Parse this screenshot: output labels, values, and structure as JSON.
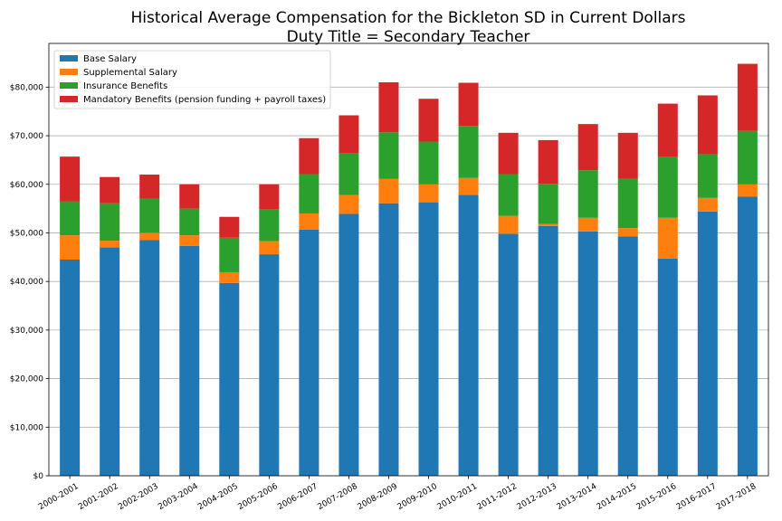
{
  "chart_data": {
    "type": "bar",
    "stacked": true,
    "title": "Historical Average Compensation for the Bickleton SD in Current Dollars",
    "subtitle": "Duty Title = Secondary Teacher",
    "xlabel": "",
    "ylabel": "",
    "ylim": [
      0,
      89000
    ],
    "yticks": [
      0,
      10000,
      20000,
      30000,
      40000,
      50000,
      60000,
      70000,
      80000
    ],
    "ytick_labels": [
      "$0",
      "$10,000",
      "$20,000",
      "$30,000",
      "$40,000",
      "$50,000",
      "$60,000",
      "$70,000",
      "$80,000"
    ],
    "grid": "horizontal",
    "legend_position": "top-left",
    "categories": [
      "2000-2001",
      "2001-2002",
      "2002-2003",
      "2003-2004",
      "2004-2005",
      "2005-2006",
      "2006-2007",
      "2007-2008",
      "2008-2009",
      "2009-2010",
      "2010-2011",
      "2011-2012",
      "2012-2013",
      "2013-2014",
      "2014-2015",
      "2015-2016",
      "2016-2017",
      "2017-2018"
    ],
    "series": [
      {
        "name": "Base Salary",
        "color": "#1f77b4",
        "values": [
          44500,
          47000,
          48500,
          47300,
          39700,
          45600,
          50700,
          53900,
          56100,
          56300,
          57800,
          49800,
          51400,
          50300,
          49300,
          44700,
          54400,
          57500
        ]
      },
      {
        "name": "Supplemental Salary",
        "color": "#ff7f0e",
        "values": [
          5000,
          1400,
          1500,
          2200,
          2200,
          2700,
          3300,
          3900,
          5000,
          3700,
          3500,
          3700,
          400,
          2800,
          1700,
          8400,
          2800,
          2500
        ]
      },
      {
        "name": "Insurance Benefits",
        "color": "#2ca02c",
        "values": [
          7000,
          7700,
          7000,
          5500,
          7100,
          6500,
          8100,
          8600,
          9600,
          8800,
          10700,
          8600,
          8300,
          9800,
          10100,
          12500,
          9000,
          11000
        ]
      },
      {
        "name": "Mandatory Benefits (pension funding + payroll taxes)",
        "color": "#d62728",
        "values": [
          9200,
          5400,
          5000,
          5000,
          4300,
          5200,
          7400,
          7800,
          10300,
          8800,
          8900,
          8500,
          9000,
          9500,
          9500,
          11000,
          12100,
          13800
        ]
      }
    ]
  }
}
